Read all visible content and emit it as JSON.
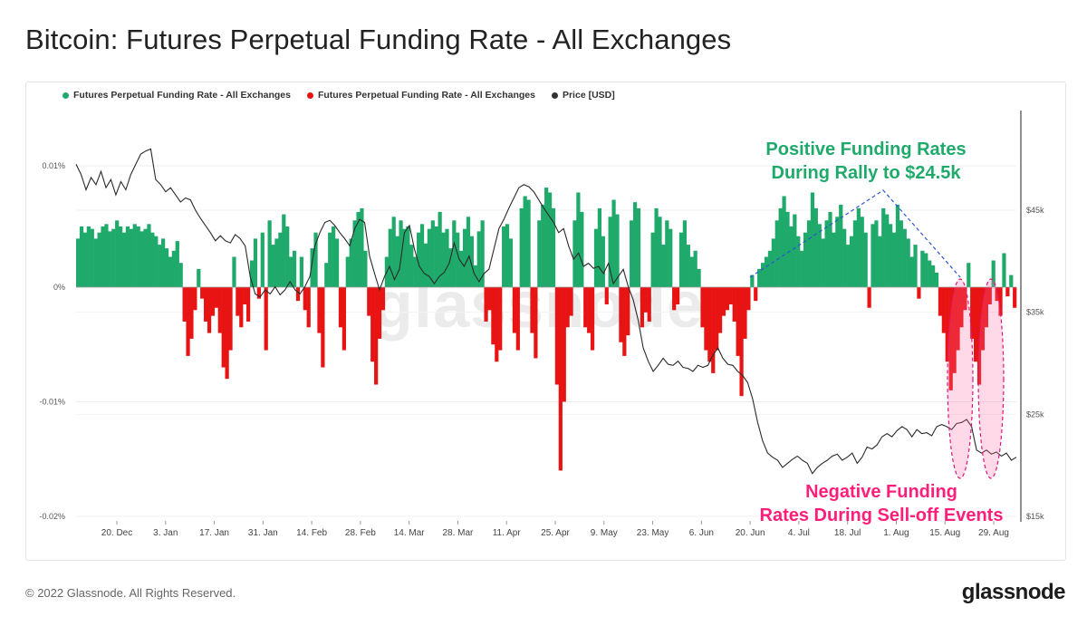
{
  "page": {
    "title": "Bitcoin: Futures Perpetual Funding Rate - All Exchanges",
    "footer": "© 2022 Glassnode. All Rights Reserved.",
    "brand": "glassnode",
    "watermark": "glassnode"
  },
  "legend": [
    {
      "label": "Futures Perpetual Funding Rate - All Exchanges",
      "color": "#1faa6b"
    },
    {
      "label": "Futures Perpetual Funding Rate - All Exchanges",
      "color": "#e81414"
    },
    {
      "label": "Price [USD]",
      "color": "#333333"
    }
  ],
  "annotations": {
    "positive_line1": "Positive Funding Rates",
    "positive_line2": "During Rally to $24.5k",
    "negative_line1": "Negative Funding",
    "negative_line2": "Rates During Sell-off Events"
  },
  "chart_data": {
    "type": "bar",
    "x_ticks": [
      "20. Dec",
      "3. Jan",
      "17. Jan",
      "31. Jan",
      "14. Feb",
      "28. Feb",
      "14. Mar",
      "28. Mar",
      "11. Apr",
      "25. Apr",
      "9. May",
      "23. May",
      "6. Jun",
      "20. Jun",
      "4. Jul",
      "18. Jul",
      "1. Aug",
      "15. Aug",
      "29. Aug"
    ],
    "y_left_ticks": [
      {
        "value": 0.01,
        "label": "0.01%"
      },
      {
        "value": 0,
        "label": "0%"
      },
      {
        "value": -0.01,
        "label": "-0.01%"
      },
      {
        "value": -0.02,
        "label": "-0.02%"
      }
    ],
    "y_right_ticks": [
      {
        "value": 45000,
        "label": "$45k"
      },
      {
        "value": 35000,
        "label": "$35k"
      },
      {
        "value": 25000,
        "label": "$25k"
      },
      {
        "value": 15000,
        "label": "$15k"
      }
    ],
    "funding_rate_ylim": [
      -0.02,
      0.0135
    ],
    "price_ylim": [
      15000,
      51000
    ],
    "x_range_days": [
      0,
      284
    ],
    "funding_rate": [
      0.004,
      0.005,
      0.0045,
      0.005,
      0.0048,
      0.004,
      0.0045,
      0.005,
      0.0052,
      0.0046,
      0.0048,
      0.0055,
      0.005,
      0.0045,
      0.005,
      0.0048,
      0.0052,
      0.005,
      0.0046,
      0.0048,
      0.0052,
      0.0045,
      0.0042,
      0.0035,
      0.004,
      0.0032,
      0.0025,
      0.003,
      0.0038,
      0.002,
      -0.003,
      -0.006,
      -0.0045,
      -0.002,
      0.0015,
      -0.001,
      -0.003,
      -0.004,
      -0.0025,
      -0.0018,
      -0.004,
      -0.007,
      -0.008,
      -0.0055,
      0.0025,
      -0.0025,
      -0.0035,
      -0.0015,
      -0.003,
      0.0022,
      0.004,
      -0.001,
      0.0045,
      -0.0055,
      0.0055,
      0.0035,
      0.004,
      0.0045,
      0.006,
      0.005,
      0.0025,
      0.003,
      -0.0012,
      0.0025,
      -0.002,
      -0.0035,
      0.0032,
      0.0045,
      -0.004,
      -0.007,
      0.002,
      0.0045,
      0.005,
      0.004,
      -0.0035,
      -0.0055,
      0.0025,
      0.004,
      0.0055,
      0.0062,
      0.0065,
      0.003,
      -0.0025,
      -0.0065,
      -0.0085,
      -0.0045,
      -0.002,
      0.0025,
      0.0048,
      0.0058,
      0.0042,
      0.0055,
      0.0048,
      0.005,
      0.0035,
      0.0025,
      0.0045,
      0.0052,
      0.0036,
      0.0048,
      0.0055,
      0.005,
      0.0062,
      0.0045,
      0.0048,
      0.0032,
      0.0055,
      0.0045,
      0.003,
      0.0048,
      0.0058,
      0.0042,
      0.0018,
      0.0046,
      0.0055,
      -0.003,
      -0.002,
      -0.005,
      -0.0065,
      -0.0055,
      0.005,
      0.0052,
      0.004,
      -0.004,
      -0.0055,
      0.0065,
      0.0075,
      0.0072,
      -0.004,
      -0.0062,
      0.0055,
      0.0068,
      0.0082,
      0.0078,
      0.0065,
      -0.0085,
      -0.016,
      -0.01,
      -0.0035,
      -0.0025,
      0.0055,
      0.0078,
      0.0062,
      -0.0035,
      -0.004,
      -0.0055,
      0.0048,
      0.0065,
      0.0042,
      -0.0015,
      0.0058,
      0.0072,
      0.006,
      -0.0048,
      -0.006,
      -0.0042,
      0.0055,
      0.007,
      0.0065,
      -0.0035,
      -0.0022,
      -0.003,
      0.0045,
      0.0065,
      0.0058,
      0.0035,
      0.0055,
      0.0048,
      -0.002,
      -0.0015,
      0.0045,
      0.0055,
      0.0035,
      0.0025,
      0.003,
      0.0015,
      -0.0035,
      -0.0055,
      -0.0065,
      -0.0075,
      -0.0055,
      -0.004,
      -0.0025,
      -0.002,
      -0.0015,
      -0.003,
      -0.006,
      -0.0095,
      -0.0045,
      -0.002,
      0.001,
      -0.0012,
      0.0015,
      0.002,
      0.0025,
      0.003,
      0.004,
      0.0055,
      0.0065,
      0.0075,
      0.0062,
      0.005,
      0.006,
      0.0042,
      0.003,
      0.0045,
      0.0055,
      0.0078,
      0.0065,
      0.0052,
      0.004,
      0.0055,
      0.0062,
      0.0045,
      0.0058,
      0.0068,
      0.0048,
      0.0035,
      0.0042,
      0.0055,
      0.0065,
      0.0058,
      0.0045,
      -0.0018,
      0.0052,
      0.0055,
      0.0042,
      0.0065,
      0.006,
      0.0052,
      0.0045,
      0.0068,
      0.0055,
      0.0048,
      0.004,
      0.0025,
      0.0035,
      -0.001,
      0.003,
      0.0028,
      0.0022,
      0.0018,
      0.0012,
      -0.0025,
      -0.004,
      -0.0065,
      -0.009,
      -0.0075,
      -0.0055,
      -0.0035,
      -0.002,
      0.002,
      -0.0045,
      -0.0065,
      -0.0085,
      -0.0055,
      -0.0035,
      -0.0015,
      0.0022,
      -0.0012,
      -0.0025,
      0.0028,
      -0.0008,
      0.001,
      -0.0018
    ],
    "price": [
      49500,
      48500,
      47000,
      48200,
      47500,
      48800,
      47200,
      48000,
      46500,
      47800,
      47000,
      48500,
      49500,
      50500,
      50800,
      51000,
      48000,
      47500,
      46800,
      47200,
      46500,
      45800,
      46200,
      46000,
      45000,
      44200,
      43500,
      42800,
      42000,
      42500,
      42000,
      41800,
      42600,
      42200,
      41500,
      38500,
      36800,
      36500,
      37200,
      36800,
      37500,
      36700,
      37200,
      38000,
      37200,
      36800,
      37500,
      38500,
      41500,
      42800,
      43800,
      44000,
      43500,
      42800,
      42200,
      41500,
      43200,
      44100,
      43800,
      40500,
      38800,
      37200,
      38500,
      39500,
      38200,
      39200,
      42800,
      43500,
      41200,
      39500,
      38800,
      38500,
      37800,
      38500,
      38900,
      39800,
      41800,
      40200,
      39500,
      40500,
      38800,
      38000,
      38800,
      39200,
      41200,
      43200,
      44100,
      45200,
      46200,
      47200,
      47500,
      47300,
      46800,
      46000,
      45200,
      44500,
      43800,
      42800,
      43200,
      41500,
      40200,
      40800,
      39500,
      39800,
      39300,
      39500,
      38800,
      39800,
      37800,
      38500,
      39200,
      37500,
      36200,
      34200,
      31500,
      30200,
      29200,
      29800,
      30500,
      29900,
      29800,
      30200,
      29600,
      29500,
      29200,
      29800,
      29600,
      29800,
      30800,
      31500,
      30500,
      29900,
      29800,
      29200,
      28800,
      28100,
      26500,
      24200,
      22400,
      21200,
      20800,
      20500,
      19800,
      20200,
      20600,
      20900,
      20500,
      20200,
      19200,
      19800,
      20200,
      20500,
      20900,
      21100,
      20500,
      20800,
      21200,
      20200,
      20800,
      21800,
      21600,
      22000,
      22800,
      23100,
      22800,
      23400,
      23800,
      23500,
      22800,
      23500,
      23100,
      23200,
      22900,
      23800,
      24000,
      23800,
      23500,
      24100,
      24200,
      24500,
      23800,
      21500,
      21200,
      21500,
      21100,
      21300,
      20900,
      21200,
      20500,
      20800
    ]
  }
}
